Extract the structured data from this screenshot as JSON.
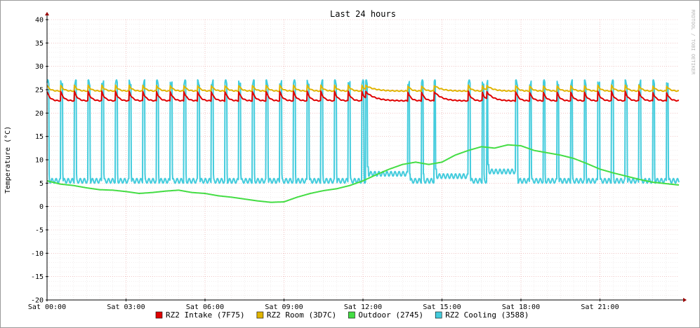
{
  "chart_data": {
    "type": "line",
    "title": "Last 24 hours",
    "ylabel": "Temperature (°C)",
    "watermark": "RRDTOOL / TOBI OETIKER",
    "ylim": [
      -20,
      40
    ],
    "yticks": [
      40,
      35,
      30,
      25,
      20,
      15,
      10,
      5,
      0,
      -5,
      -10,
      -15,
      -20
    ],
    "x_hours_range": [
      0,
      24
    ],
    "x_tick_labels": [
      {
        "hour": 0,
        "label": "Sat 00:00"
      },
      {
        "hour": 3,
        "label": "Sat 03:00"
      },
      {
        "hour": 6,
        "label": "Sat 06:00"
      },
      {
        "hour": 9,
        "label": "Sat 09:00"
      },
      {
        "hour": 12,
        "label": "Sat 12:00"
      },
      {
        "hour": 15,
        "label": "Sat 15:00"
      },
      {
        "hour": 18,
        "label": "Sat 18:00"
      },
      {
        "hour": 21,
        "label": "Sat 21:00"
      }
    ],
    "grid": true,
    "legend_position": "bottom",
    "series": [
      {
        "name": "RZ2 Intake (7F75)",
        "color": "#e00000",
        "pattern": {
          "kind": "sawtooth",
          "period_h": 0.52,
          "peak": 24.6,
          "floor": 22.6,
          "long_cycles": [
            {
              "start_h": 12.1,
              "end_h": 13.7
            },
            {
              "start_h": 14.7,
              "end_h": 16.0
            },
            {
              "start_h": 16.7,
              "end_h": 17.8
            }
          ]
        },
        "x_hours": [
          0,
          24
        ],
        "values": [
          23.5,
          23.2
        ]
      },
      {
        "name": "RZ2 Room (3D7C)",
        "color": "#e0b400",
        "pattern": {
          "kind": "sawtooth",
          "period_h": 0.52,
          "peak": 25.9,
          "floor": 24.7,
          "long_cycles": [
            {
              "start_h": 12.1,
              "end_h": 13.7
            },
            {
              "start_h": 14.7,
              "end_h": 16.0
            },
            {
              "start_h": 16.7,
              "end_h": 17.8
            }
          ]
        },
        "x_hours": [
          0,
          24
        ],
        "values": [
          25.2,
          25.0
        ]
      },
      {
        "name": "Outdoor (2745)",
        "color": "#44dd44",
        "x_hours": [
          0,
          0.5,
          1,
          1.5,
          2,
          2.5,
          3,
          3.5,
          4,
          4.5,
          5,
          5.5,
          6,
          6.5,
          7,
          7.5,
          8,
          8.5,
          9,
          9.5,
          10,
          10.5,
          11,
          11.5,
          12,
          12.5,
          13,
          13.5,
          14,
          14.5,
          15,
          15.5,
          16,
          16.5,
          17,
          17.5,
          18,
          18.5,
          19,
          19.5,
          20,
          20.5,
          21,
          21.5,
          22,
          22.5,
          23,
          23.5,
          24
        ],
        "values": [
          5.5,
          4.8,
          4.5,
          4.0,
          3.6,
          3.5,
          3.2,
          2.8,
          3.0,
          3.3,
          3.5,
          3.0,
          2.8,
          2.3,
          2.0,
          1.6,
          1.2,
          0.9,
          1.0,
          2.0,
          2.8,
          3.4,
          3.8,
          4.5,
          5.5,
          6.8,
          8.0,
          9.0,
          9.5,
          9.0,
          9.5,
          11.0,
          12.0,
          12.8,
          12.5,
          13.2,
          13.0,
          12.0,
          11.5,
          11.0,
          10.3,
          9.2,
          8.0,
          7.2,
          6.5,
          5.8,
          5.2,
          4.9,
          4.6
        ]
      },
      {
        "name": "RZ2 Cooling (3588)",
        "color": "#44ccdd",
        "pattern": {
          "kind": "pulse",
          "period_h": 0.52,
          "high": 26.5,
          "low": 5.5,
          "long_cycles": [
            {
              "start_h": 12.1,
              "end_h": 13.7,
              "low": 7.0
            },
            {
              "start_h": 14.7,
              "end_h": 16.0,
              "low": 6.5
            },
            {
              "start_h": 16.7,
              "end_h": 17.8,
              "low": 7.5
            }
          ]
        },
        "x_hours": [
          0,
          24
        ],
        "values": [
          5.5,
          5.5
        ]
      }
    ]
  }
}
